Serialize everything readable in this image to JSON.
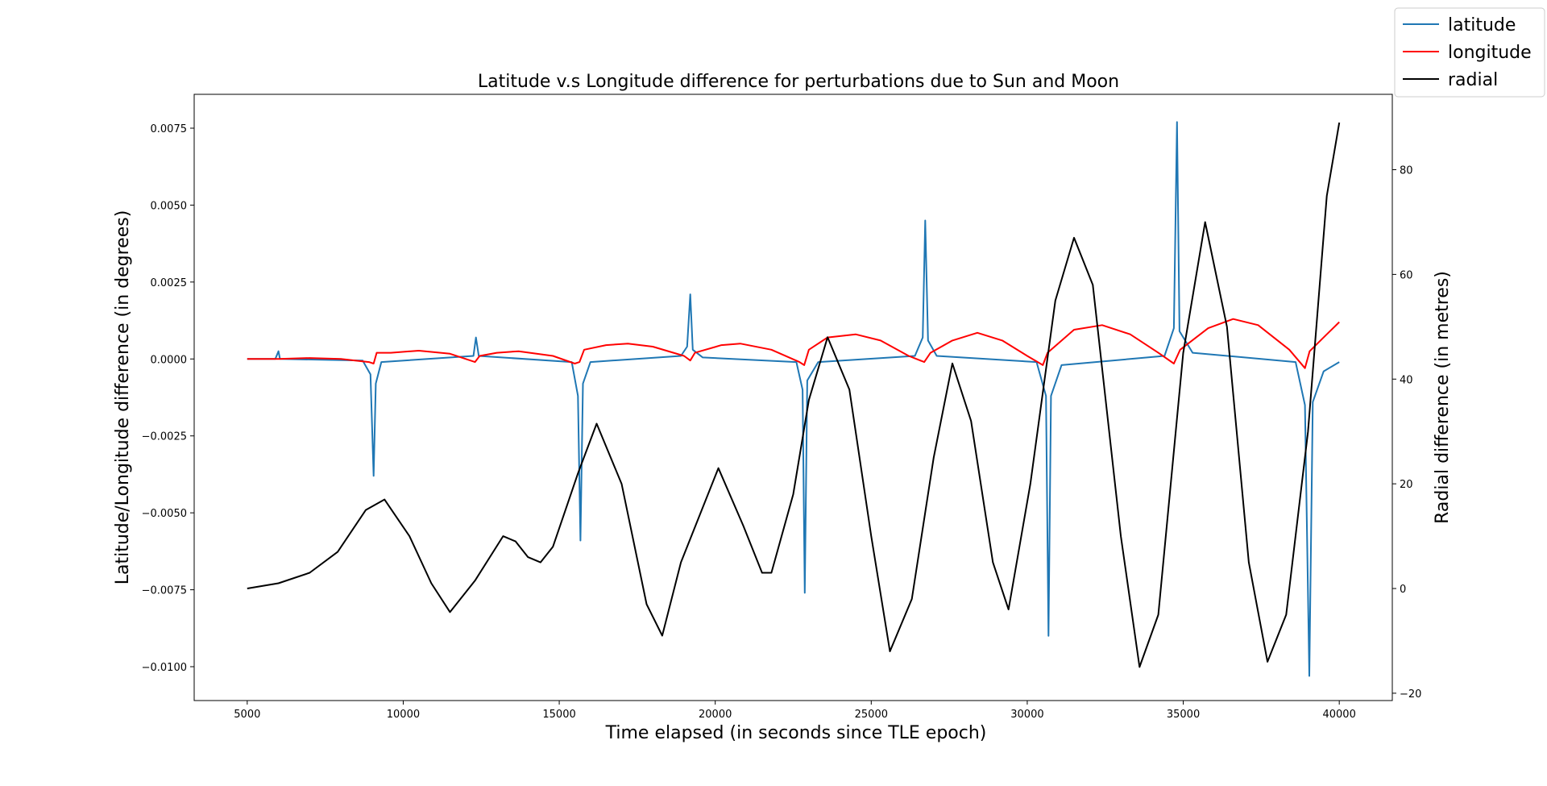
{
  "chart_data": {
    "type": "line",
    "title": "Latitude v.s Longitude difference for perturbations due to Sun and Moon",
    "xlabel": "Time elapsed (in seconds since TLE epoch)",
    "ylabel_left": "Latitude/Longitude difference (in degrees)",
    "ylabel_right": "Radial difference (in metres)",
    "xlim": [
      3300,
      41700
    ],
    "ylim_left": [
      -0.0111,
      0.0086
    ],
    "ylim_right": [
      -21.4,
      94.4
    ],
    "x_ticks": [
      5000,
      10000,
      15000,
      20000,
      25000,
      30000,
      35000,
      40000
    ],
    "x_tick_labels": [
      "5000",
      "10000",
      "15000",
      "20000",
      "25000",
      "30000",
      "35000",
      "40000"
    ],
    "y_left_ticks": [
      0.0075,
      0.005,
      0.0025,
      0.0,
      -0.0025,
      -0.005,
      -0.0075,
      -0.01
    ],
    "y_left_tick_labels": [
      "0.0075",
      "0.0050",
      "0.0025",
      "0.0000",
      "−0.0025",
      "−0.0050",
      "−0.0075",
      "−0.0100"
    ],
    "y_right_ticks": [
      80,
      60,
      40,
      20,
      0,
      -20
    ],
    "y_right_tick_labels": [
      "80",
      "60",
      "40",
      "20",
      "0",
      "−20"
    ],
    "legend_position": "top-right (outside plot)",
    "grid": false,
    "series": [
      {
        "name": "latitude",
        "color": "#1f77b4",
        "axis": "left",
        "points": [
          [
            5000,
            0.0
          ],
          [
            5900,
            0.0
          ],
          [
            6000,
            0.00025
          ],
          [
            6050,
            0.0
          ],
          [
            8700,
            -5e-05
          ],
          [
            8950,
            -0.0005
          ],
          [
            9050,
            -0.0038
          ],
          [
            9120,
            -0.0008
          ],
          [
            9300,
            -0.0001
          ],
          [
            12250,
            0.0001
          ],
          [
            12330,
            0.0007
          ],
          [
            12420,
            0.0001
          ],
          [
            15400,
            -0.0001
          ],
          [
            15600,
            -0.0012
          ],
          [
            15680,
            -0.0059
          ],
          [
            15760,
            -0.0008
          ],
          [
            16000,
            -0.0001
          ],
          [
            18900,
            0.0001
          ],
          [
            19100,
            0.0004
          ],
          [
            19200,
            0.0021
          ],
          [
            19280,
            0.0003
          ],
          [
            19600,
            5e-05
          ],
          [
            22600,
            -0.0001
          ],
          [
            22800,
            -0.001
          ],
          [
            22870,
            -0.0076
          ],
          [
            22950,
            -0.0007
          ],
          [
            23300,
            -0.0001
          ],
          [
            26400,
            0.0001
          ],
          [
            26650,
            0.0007
          ],
          [
            26730,
            0.0045
          ],
          [
            26820,
            0.0006
          ],
          [
            27100,
            0.0001
          ],
          [
            30300,
            -0.0001
          ],
          [
            30600,
            -0.0012
          ],
          [
            30680,
            -0.009
          ],
          [
            30760,
            -0.0012
          ],
          [
            31100,
            -0.0002
          ],
          [
            34400,
            0.0001
          ],
          [
            34700,
            0.001
          ],
          [
            34800,
            0.0077
          ],
          [
            34880,
            0.0009
          ],
          [
            35300,
            0.0002
          ],
          [
            38600,
            -0.0001
          ],
          [
            38900,
            -0.0015
          ],
          [
            39040,
            -0.0103
          ],
          [
            39150,
            -0.0014
          ],
          [
            39500,
            -0.0004
          ],
          [
            40000,
            -0.0001
          ]
        ]
      },
      {
        "name": "longitude",
        "color": "#ff0000",
        "axis": "left",
        "points": [
          [
            5000,
            0.0
          ],
          [
            6000,
            0.0
          ],
          [
            7000,
            3e-05
          ],
          [
            8000,
            0.0
          ],
          [
            8900,
            -0.0001
          ],
          [
            9050,
            -0.00015
          ],
          [
            9150,
            0.0002
          ],
          [
            9600,
            0.0002
          ],
          [
            10500,
            0.00027
          ],
          [
            11500,
            0.00017
          ],
          [
            12300,
            -0.0001
          ],
          [
            12450,
            0.0001
          ],
          [
            13000,
            0.0002
          ],
          [
            13700,
            0.00025
          ],
          [
            14800,
            0.0001
          ],
          [
            15500,
            -0.00015
          ],
          [
            15650,
            -0.0001
          ],
          [
            15800,
            0.0003
          ],
          [
            16500,
            0.00045
          ],
          [
            17200,
            0.0005
          ],
          [
            18000,
            0.0004
          ],
          [
            19000,
            0.0001
          ],
          [
            19200,
            -5e-05
          ],
          [
            19350,
            0.0002
          ],
          [
            20200,
            0.00045
          ],
          [
            20800,
            0.0005
          ],
          [
            21800,
            0.0003
          ],
          [
            22700,
            -0.0001
          ],
          [
            22850,
            -0.0002
          ],
          [
            23000,
            0.0003
          ],
          [
            23600,
            0.0007
          ],
          [
            24500,
            0.0008
          ],
          [
            25300,
            0.0006
          ],
          [
            26200,
            0.0001
          ],
          [
            26700,
            -0.0001
          ],
          [
            26900,
            0.0002
          ],
          [
            27600,
            0.0006
          ],
          [
            28400,
            0.00085
          ],
          [
            29200,
            0.0006
          ],
          [
            30000,
            0.0001
          ],
          [
            30500,
            -0.0002
          ],
          [
            30650,
            0.0002
          ],
          [
            31500,
            0.00095
          ],
          [
            32400,
            0.0011
          ],
          [
            33300,
            0.0008
          ],
          [
            34200,
            0.0002
          ],
          [
            34700,
            -0.00015
          ],
          [
            34900,
            0.0003
          ],
          [
            35800,
            0.001
          ],
          [
            36600,
            0.0013
          ],
          [
            37400,
            0.0011
          ],
          [
            38400,
            0.0003
          ],
          [
            38900,
            -0.0003
          ],
          [
            39050,
            0.00025
          ],
          [
            39600,
            0.0008
          ],
          [
            40000,
            0.0012
          ]
        ]
      },
      {
        "name": "radial",
        "color": "#000000",
        "axis": "right",
        "points": [
          [
            5000,
            0.0
          ],
          [
            6000,
            1.0
          ],
          [
            7000,
            3.0
          ],
          [
            7900,
            7.0
          ],
          [
            8800,
            15.0
          ],
          [
            9400,
            17.0
          ],
          [
            10200,
            10.0
          ],
          [
            10900,
            1.0
          ],
          [
            11500,
            -4.5
          ],
          [
            12300,
            1.5
          ],
          [
            13200,
            10.0
          ],
          [
            13600,
            9.0
          ],
          [
            14000,
            6.0
          ],
          [
            14400,
            5.0
          ],
          [
            14800,
            8.0
          ],
          [
            15600,
            22.0
          ],
          [
            16200,
            31.5
          ],
          [
            17000,
            20.0
          ],
          [
            17800,
            -3.0
          ],
          [
            18300,
            -9.0
          ],
          [
            18900,
            5.0
          ],
          [
            20100,
            23.0
          ],
          [
            20900,
            12.0
          ],
          [
            21500,
            3.0
          ],
          [
            21800,
            3.0
          ],
          [
            22500,
            18.0
          ],
          [
            23000,
            36.0
          ],
          [
            23600,
            48.0
          ],
          [
            24300,
            38.0
          ],
          [
            25000,
            10.0
          ],
          [
            25600,
            -12.0
          ],
          [
            26300,
            -2.0
          ],
          [
            27000,
            25.0
          ],
          [
            27600,
            43.0
          ],
          [
            28200,
            32.0
          ],
          [
            28900,
            5.0
          ],
          [
            29400,
            -4.0
          ],
          [
            30100,
            20.0
          ],
          [
            30900,
            55.0
          ],
          [
            31500,
            67.0
          ],
          [
            32100,
            58.0
          ],
          [
            33000,
            10.0
          ],
          [
            33600,
            -15.0
          ],
          [
            34200,
            -5.0
          ],
          [
            35000,
            45.0
          ],
          [
            35700,
            70.0
          ],
          [
            36400,
            50.0
          ],
          [
            37100,
            5.0
          ],
          [
            37700,
            -14.0
          ],
          [
            38300,
            -5.0
          ],
          [
            39000,
            30.0
          ],
          [
            39600,
            75.0
          ],
          [
            40000,
            89.0
          ]
        ]
      }
    ]
  }
}
